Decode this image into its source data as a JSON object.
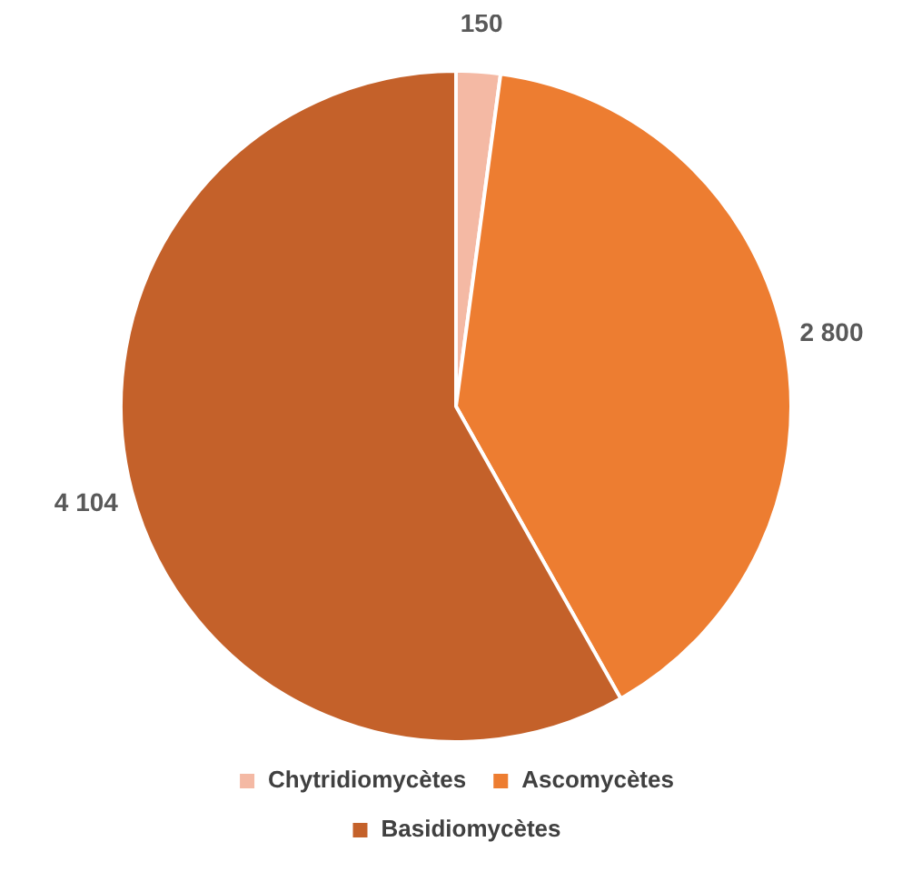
{
  "chart_data": {
    "type": "pie",
    "categories": [
      "Chytridiomycètes",
      "Ascomycètes",
      "Basidiomycètes"
    ],
    "values": [
      150,
      2800,
      4104
    ],
    "value_labels": [
      "150",
      "2 800",
      "4 104"
    ],
    "colors": [
      "#f4b9a4",
      "#ed7d31",
      "#c4612a"
    ],
    "legend": "bottom"
  }
}
